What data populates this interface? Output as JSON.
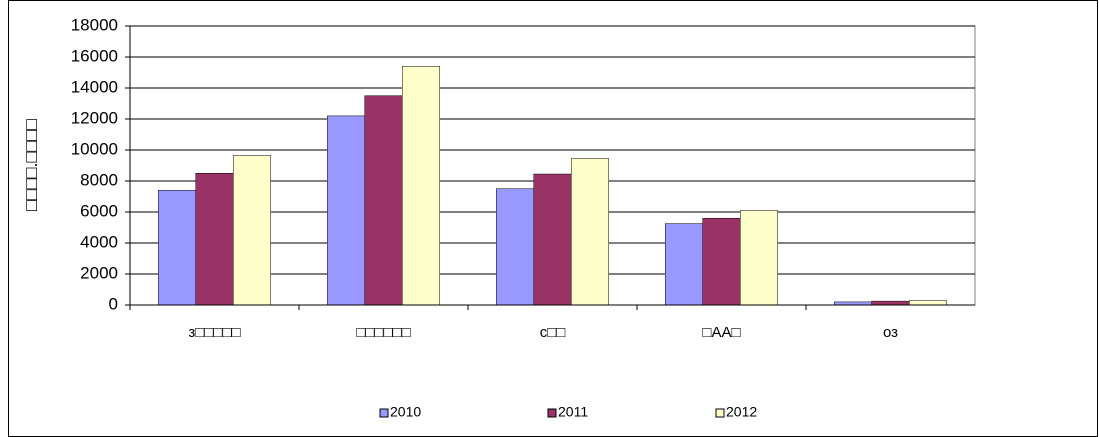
{
  "chart_data": {
    "type": "bar",
    "y_label": "□□□□.□□□□",
    "categories": [
      "з□□□□□",
      "□□□□□□",
      "с□□",
      "□АА□",
      "оз"
    ],
    "series": [
      {
        "name": "2010",
        "color": "#9999ff",
        "values": [
          7400,
          12200,
          7500,
          5250,
          200
        ]
      },
      {
        "name": "2011",
        "color": "#993366",
        "values": [
          8500,
          13500,
          8450,
          5600,
          250
        ]
      },
      {
        "name": "2012",
        "color": "#ffffcc",
        "values": [
          9650,
          15400,
          9450,
          6100,
          280
        ]
      }
    ],
    "ylim": [
      0,
      18000
    ],
    "yticks": [
      0,
      2000,
      4000,
      6000,
      8000,
      10000,
      12000,
      14000,
      16000,
      18000
    ],
    "grid": true,
    "legend": "bottom"
  }
}
